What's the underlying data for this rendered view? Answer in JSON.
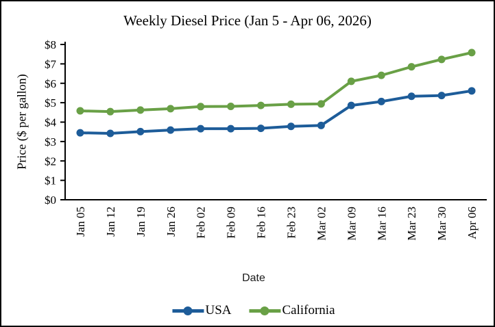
{
  "chart_data": {
    "type": "line",
    "title": "Weekly Diesel Price (Jan 5 - Apr 06, 2026)",
    "xlabel": "Date",
    "ylabel": "Price ($ per gallon)",
    "categories": [
      "Jan 05",
      "Jan 12",
      "Jan 19",
      "Jan 26",
      "Feb 02",
      "Feb 09",
      "Feb 16",
      "Feb 23",
      "Mar 02",
      "Mar 09",
      "Mar 16",
      "Mar 23",
      "Mar 30",
      "Apr 06"
    ],
    "series": [
      {
        "name": "USA",
        "color": "#1D5C99",
        "values": [
          3.45,
          3.42,
          3.51,
          3.59,
          3.66,
          3.66,
          3.68,
          3.78,
          3.83,
          4.86,
          5.06,
          5.33,
          5.37,
          5.61
        ]
      },
      {
        "name": "California",
        "color": "#69A046",
        "values": [
          4.58,
          4.54,
          4.62,
          4.69,
          4.8,
          4.81,
          4.86,
          4.92,
          4.94,
          6.1,
          6.41,
          6.85,
          7.23,
          7.58
        ]
      }
    ],
    "ylim": [
      0,
      8
    ],
    "ytick_labels": [
      "$0",
      "$1",
      "$2",
      "$3",
      "$4",
      "$5",
      "$6",
      "$7",
      "$8"
    ],
    "grid": false,
    "legend_position": "bottom",
    "axis_color": "#000000",
    "text_color": "#000000"
  }
}
